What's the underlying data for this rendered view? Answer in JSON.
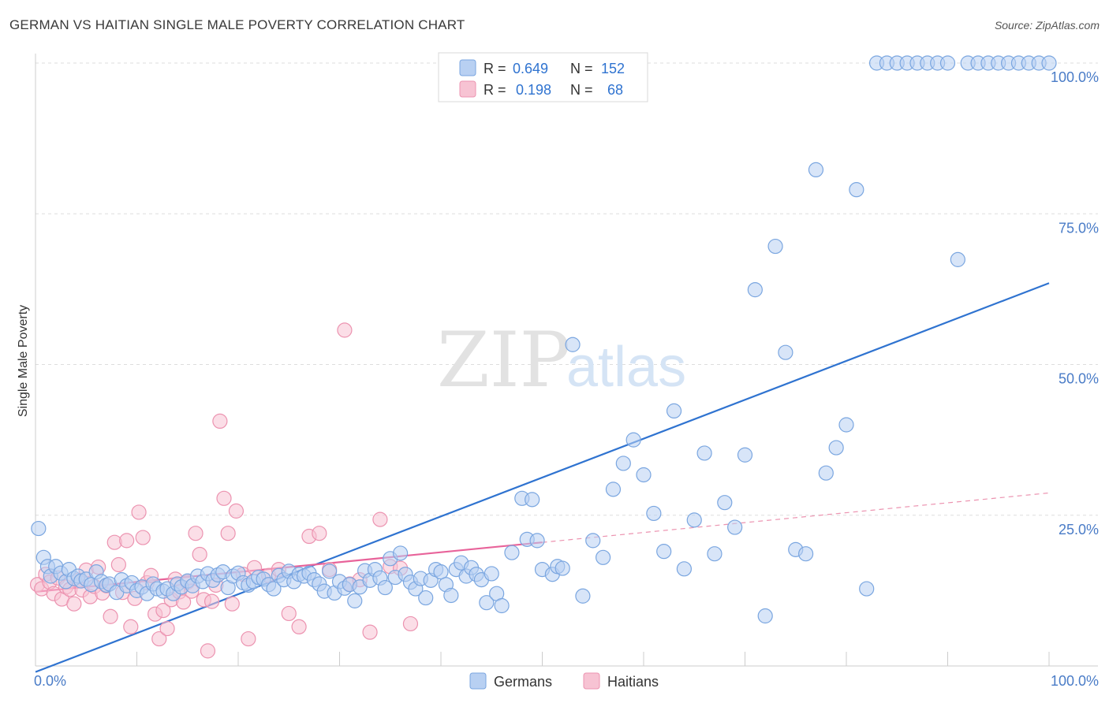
{
  "header": {
    "title": "GERMAN VS HAITIAN SINGLE MALE POVERTY CORRELATION CHART",
    "source": "Source: ZipAtlas.com"
  },
  "watermark": {
    "zip": "ZIP",
    "atlas": "atlas"
  },
  "colors": {
    "german_fill": "#b8d0f2",
    "german_stroke": "#7aa6e0",
    "german_line": "#2f73d0",
    "haitian_fill": "#f7c3d3",
    "haitian_stroke": "#ec93b0",
    "haitian_line": "#e8639a",
    "grid": "#dddddd",
    "tick_text": "#4a7cc7"
  },
  "chart_data": {
    "type": "scatter",
    "xlabel": "",
    "ylabel": "Single Male Poverty",
    "xlim": [
      0,
      100
    ],
    "ylim": [
      0,
      100
    ],
    "x_tick_labels": [
      {
        "value": 0,
        "label": "0.0%"
      },
      {
        "value": 100,
        "label": "100.0%"
      }
    ],
    "y_tick_labels": [
      {
        "value": 25,
        "label": "25.0%"
      },
      {
        "value": 50,
        "label": "50.0%"
      },
      {
        "value": 75,
        "label": "75.0%"
      },
      {
        "value": 100,
        "label": "100.0%"
      }
    ],
    "grid": "dashed horizontal",
    "legend_top": [
      {
        "series": "Germans",
        "r_label": "R =",
        "r_value": "0.649",
        "n_label": "N =",
        "n_value": "152"
      },
      {
        "series": "Haitians",
        "r_label": "R =",
        "r_value": "0.198",
        "n_label": "N =",
        "n_value": "68"
      }
    ],
    "series": [
      {
        "name": "Germans",
        "trend": {
          "x": [
            0,
            100
          ],
          "y": [
            -1,
            63.5
          ],
          "style": "solid"
        },
        "points": [
          [
            0.3,
            22.8
          ],
          [
            0.8,
            18
          ],
          [
            1.2,
            16.5
          ],
          [
            1.5,
            14.9
          ],
          [
            2,
            16.5
          ],
          [
            2.5,
            15.4
          ],
          [
            3,
            14
          ],
          [
            3.3,
            16
          ],
          [
            3.8,
            14.5
          ],
          [
            4.2,
            14.9
          ],
          [
            4.5,
            14.1
          ],
          [
            5,
            14.4
          ],
          [
            5.5,
            13.5
          ],
          [
            6,
            15.6
          ],
          [
            6.5,
            14
          ],
          [
            7,
            13.4
          ],
          [
            7.3,
            13.6
          ],
          [
            8,
            12.2
          ],
          [
            8.5,
            14.3
          ],
          [
            9,
            13.3
          ],
          [
            9.5,
            13.8
          ],
          [
            10,
            12.5
          ],
          [
            10.5,
            13.1
          ],
          [
            11,
            12
          ],
          [
            11.6,
            13.6
          ],
          [
            12,
            12.8
          ],
          [
            12.6,
            12.4
          ],
          [
            13,
            12.8
          ],
          [
            13.6,
            12
          ],
          [
            14,
            13.6
          ],
          [
            14.4,
            13.1
          ],
          [
            15,
            14.1
          ],
          [
            15.5,
            13.3
          ],
          [
            16,
            14.9
          ],
          [
            16.5,
            14
          ],
          [
            17,
            15.3
          ],
          [
            17.5,
            14.2
          ],
          [
            18,
            15.1
          ],
          [
            18.5,
            15.6
          ],
          [
            19,
            13
          ],
          [
            19.5,
            14.9
          ],
          [
            20,
            15.4
          ],
          [
            20.5,
            13.8
          ],
          [
            21,
            13.4
          ],
          [
            21.5,
            14
          ],
          [
            22,
            14.7
          ],
          [
            22.5,
            14.4
          ],
          [
            23,
            13.5
          ],
          [
            23.5,
            12.8
          ],
          [
            24,
            15
          ],
          [
            24.5,
            14.3
          ],
          [
            25,
            15.7
          ],
          [
            25.5,
            14
          ],
          [
            26,
            15.2
          ],
          [
            26.5,
            14.9
          ],
          [
            27,
            15.4
          ],
          [
            27.5,
            14.3
          ],
          [
            28,
            13.6
          ],
          [
            28.5,
            12.4
          ],
          [
            29,
            15.7
          ],
          [
            29.5,
            12.1
          ],
          [
            30,
            14
          ],
          [
            30.5,
            12.9
          ],
          [
            31,
            13.5
          ],
          [
            31.5,
            10.8
          ],
          [
            32,
            13.1
          ],
          [
            32.5,
            15.8
          ],
          [
            33,
            14.2
          ],
          [
            33.5,
            16
          ],
          [
            34,
            14.6
          ],
          [
            34.5,
            13
          ],
          [
            35,
            17.8
          ],
          [
            35.5,
            14.7
          ],
          [
            36,
            18.7
          ],
          [
            36.5,
            15.2
          ],
          [
            37,
            13.9
          ],
          [
            37.5,
            12.8
          ],
          [
            38,
            14.5
          ],
          [
            38.5,
            11.3
          ],
          [
            39,
            14.2
          ],
          [
            39.5,
            16
          ],
          [
            40,
            15.6
          ],
          [
            40.5,
            13.5
          ],
          [
            41,
            11.7
          ],
          [
            41.5,
            16
          ],
          [
            42,
            17.1
          ],
          [
            42.5,
            14.9
          ],
          [
            43,
            16.3
          ],
          [
            43.5,
            15.2
          ],
          [
            44,
            14.3
          ],
          [
            44.5,
            10.5
          ],
          [
            45,
            15.3
          ],
          [
            45.5,
            12
          ],
          [
            46,
            10
          ],
          [
            47,
            18.8
          ],
          [
            48,
            27.8
          ],
          [
            48.5,
            21
          ],
          [
            49,
            27.6
          ],
          [
            49.5,
            20.8
          ],
          [
            50,
            16
          ],
          [
            51,
            15.2
          ],
          [
            51.5,
            16.5
          ],
          [
            52,
            16.2
          ],
          [
            53,
            53.3
          ],
          [
            54,
            11.6
          ],
          [
            55,
            20.8
          ],
          [
            56,
            18
          ],
          [
            57,
            29.3
          ],
          [
            58,
            33.6
          ],
          [
            59,
            37.5
          ],
          [
            60,
            31.7
          ],
          [
            61,
            25.3
          ],
          [
            62,
            19
          ],
          [
            63,
            42.3
          ],
          [
            64,
            16.1
          ],
          [
            65,
            24.2
          ],
          [
            66,
            35.3
          ],
          [
            67,
            18.6
          ],
          [
            68,
            27.1
          ],
          [
            69,
            23
          ],
          [
            70,
            35
          ],
          [
            71,
            62.4
          ],
          [
            72,
            8.3
          ],
          [
            73,
            69.6
          ],
          [
            74,
            52
          ],
          [
            75,
            19.3
          ],
          [
            76,
            18.6
          ],
          [
            77,
            82.3
          ],
          [
            78,
            32
          ],
          [
            79,
            36.2
          ],
          [
            80,
            40
          ],
          [
            81,
            79
          ],
          [
            82,
            12.8
          ],
          [
            83,
            100
          ],
          [
            84,
            100
          ],
          [
            85,
            100
          ],
          [
            86,
            100
          ],
          [
            87,
            100
          ],
          [
            88,
            100
          ],
          [
            89,
            100
          ],
          [
            90,
            100
          ],
          [
            91,
            67.4
          ],
          [
            92,
            100
          ],
          [
            93,
            100
          ],
          [
            94,
            100
          ],
          [
            95,
            100
          ],
          [
            96,
            100
          ],
          [
            97,
            100
          ],
          [
            98,
            100
          ],
          [
            99,
            100
          ],
          [
            100,
            100
          ]
        ]
      },
      {
        "name": "Haitians",
        "trend": {
          "x": [
            0,
            50
          ],
          "y": [
            12.3,
            20.5
          ],
          "style": "solid"
        },
        "trend_extension": {
          "x": [
            50,
            100
          ],
          "y": [
            20.5,
            28.7
          ],
          "style": "dashed"
        },
        "points": [
          [
            0.2,
            13.5
          ],
          [
            0.6,
            12.8
          ],
          [
            1,
            15.2
          ],
          [
            1.4,
            13.9
          ],
          [
            1.8,
            12
          ],
          [
            2.2,
            14.6
          ],
          [
            2.6,
            11.1
          ],
          [
            3,
            13.1
          ],
          [
            3.4,
            12.7
          ],
          [
            3.8,
            10.3
          ],
          [
            4.2,
            14.2
          ],
          [
            4.6,
            12.6
          ],
          [
            5,
            15.9
          ],
          [
            5.4,
            11.5
          ],
          [
            5.8,
            13.2
          ],
          [
            6.2,
            16.4
          ],
          [
            6.6,
            12.1
          ],
          [
            7,
            13.3
          ],
          [
            7.4,
            8.2
          ],
          [
            7.8,
            20.5
          ],
          [
            8.2,
            16.8
          ],
          [
            8.6,
            12.2
          ],
          [
            9,
            20.8
          ],
          [
            9.4,
            6.5
          ],
          [
            9.8,
            11.2
          ],
          [
            10.2,
            25.5
          ],
          [
            10.6,
            21.3
          ],
          [
            11,
            13.8
          ],
          [
            11.4,
            15
          ],
          [
            11.8,
            8.6
          ],
          [
            12.2,
            4.5
          ],
          [
            12.6,
            9.2
          ],
          [
            13,
            6.2
          ],
          [
            13.4,
            11
          ],
          [
            13.8,
            14.4
          ],
          [
            14.2,
            12.3
          ],
          [
            14.6,
            10.6
          ],
          [
            15,
            13.9
          ],
          [
            15.4,
            12.4
          ],
          [
            15.8,
            22
          ],
          [
            16.2,
            18.5
          ],
          [
            16.6,
            11
          ],
          [
            17,
            2.5
          ],
          [
            17.4,
            10.7
          ],
          [
            17.8,
            13.4
          ],
          [
            18.2,
            40.6
          ],
          [
            18.6,
            27.8
          ],
          [
            19,
            22
          ],
          [
            19.4,
            10.3
          ],
          [
            19.8,
            25.7
          ],
          [
            20.5,
            15.2
          ],
          [
            21,
            4.5
          ],
          [
            21.6,
            16.3
          ],
          [
            23,
            15
          ],
          [
            24,
            16
          ],
          [
            25,
            8.7
          ],
          [
            26,
            6.5
          ],
          [
            27,
            21.5
          ],
          [
            28,
            22
          ],
          [
            29,
            16
          ],
          [
            30.5,
            55.7
          ],
          [
            31,
            13.6
          ],
          [
            32,
            14.3
          ],
          [
            33,
            5.6
          ],
          [
            34,
            24.3
          ],
          [
            35,
            16.5
          ],
          [
            36,
            16.2
          ],
          [
            37,
            7
          ]
        ]
      }
    ],
    "legend_bottom": [
      "Germans",
      "Haitians"
    ]
  }
}
